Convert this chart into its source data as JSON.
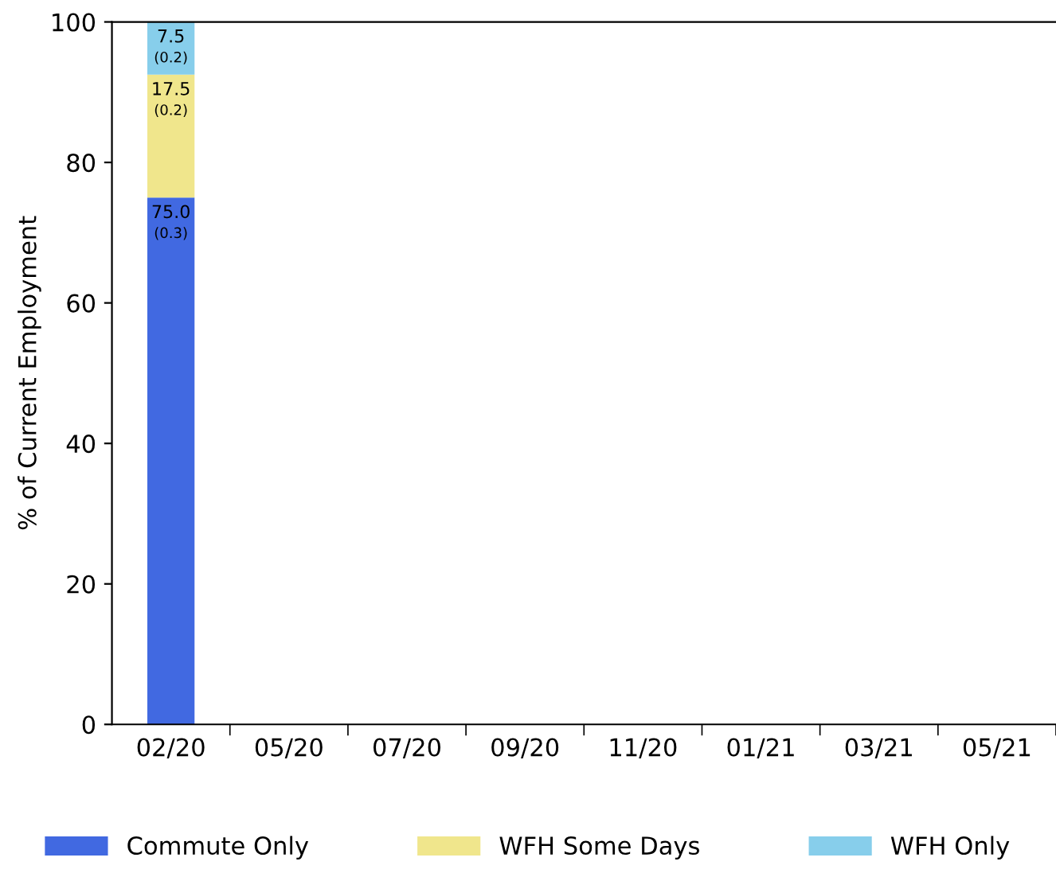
{
  "chart_data": {
    "type": "bar",
    "stacked": true,
    "ylabel": "% of Current Employment",
    "categories": [
      "02/20",
      "05/20",
      "07/20",
      "09/20",
      "11/20",
      "01/21",
      "03/21",
      "05/21"
    ],
    "series": [
      {
        "name": "Commute Only",
        "color": "#4169e1",
        "values": [
          75.0,
          null,
          null,
          null,
          null,
          null,
          null,
          null
        ],
        "value_labels": [
          "75.0\n(0.3)",
          null,
          null,
          null,
          null,
          null,
          null,
          null
        ]
      },
      {
        "name": "WFH Some Days",
        "color": "#f0e68c",
        "values": [
          17.5,
          null,
          null,
          null,
          null,
          null,
          null,
          null
        ],
        "value_labels": [
          "17.5\n(0.2)",
          null,
          null,
          null,
          null,
          null,
          null,
          null
        ]
      },
      {
        "name": "WFH Only",
        "color": "#87ceeb",
        "values": [
          7.5,
          null,
          null,
          null,
          null,
          null,
          null,
          null
        ],
        "value_labels": [
          "7.5\n(0.2)",
          null,
          null,
          null,
          null,
          null,
          null,
          null
        ]
      }
    ],
    "ylim": [
      0,
      100
    ],
    "yticks": [
      0,
      20,
      40,
      60,
      80,
      100
    ],
    "grid": false,
    "legend": "bottom"
  }
}
